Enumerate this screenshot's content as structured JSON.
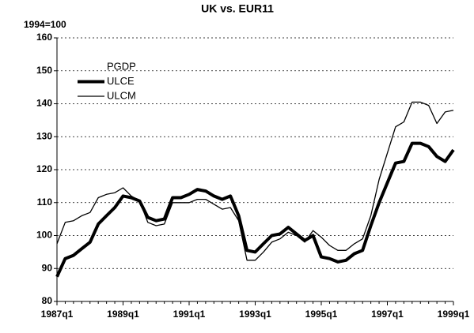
{
  "chart_data": {
    "type": "line",
    "title": "UK vs. EUR11",
    "ylabel": "1994=100",
    "categories": [
      "1987q1",
      null,
      null,
      null,
      null,
      null,
      null,
      null,
      "1989q1",
      null,
      null,
      null,
      null,
      null,
      null,
      null,
      "1991q1",
      null,
      null,
      null,
      null,
      null,
      null,
      null,
      "1993q1",
      null,
      null,
      null,
      null,
      null,
      null,
      null,
      "1995q1",
      null,
      null,
      null,
      null,
      null,
      null,
      null,
      "1997q1",
      null,
      null,
      null,
      null,
      null,
      null,
      null,
      "1999q1"
    ],
    "series": [
      {
        "name": "PGDP",
        "color": "#ffffff",
        "width": 1,
        "values": [
          null,
          null,
          null,
          null,
          null,
          null,
          null,
          null,
          null,
          null,
          null,
          null,
          null,
          null,
          null,
          null,
          null,
          null,
          null,
          null,
          null,
          null,
          null,
          null,
          null,
          null,
          null,
          null,
          null,
          null,
          null,
          null,
          null,
          null,
          null,
          null,
          null,
          null,
          null,
          null,
          null,
          null,
          null,
          null,
          null,
          null,
          null,
          null,
          null
        ]
      },
      {
        "name": "ULCE",
        "color": "#000000",
        "width": 4,
        "values": [
          87.5,
          93,
          94,
          96,
          98,
          103.5,
          106,
          108.5,
          112,
          111.5,
          110.5,
          105.5,
          104.5,
          105,
          111.5,
          111.5,
          112.5,
          114,
          113.5,
          112,
          111,
          112,
          106,
          95.5,
          95,
          97.5,
          100,
          100.5,
          102.5,
          100.5,
          98.5,
          100,
          93.5,
          93,
          92,
          92.5,
          94.5,
          95.5,
          103,
          110,
          116,
          122,
          122.5,
          128,
          128,
          127,
          124,
          122.5,
          126
        ]
      },
      {
        "name": "ULCM",
        "color": "#000000",
        "width": 1.3,
        "values": [
          97.5,
          104,
          104.5,
          106,
          107,
          111.5,
          112.5,
          113,
          114.5,
          112,
          110.5,
          104,
          103,
          103.5,
          110,
          110,
          110,
          111,
          111,
          109.5,
          108,
          108.5,
          104.5,
          92.5,
          92.5,
          95,
          98,
          99,
          101,
          100,
          98,
          101.5,
          99.5,
          97,
          95.5,
          95.5,
          97.5,
          99,
          106,
          117,
          125,
          133,
          134.5,
          140.5,
          140.5,
          139.5,
          134,
          137.5,
          138
        ]
      }
    ],
    "ylim": [
      80,
      160
    ],
    "yticks": [
      80,
      90,
      100,
      110,
      120,
      130,
      140,
      150,
      160
    ],
    "grid": true
  }
}
